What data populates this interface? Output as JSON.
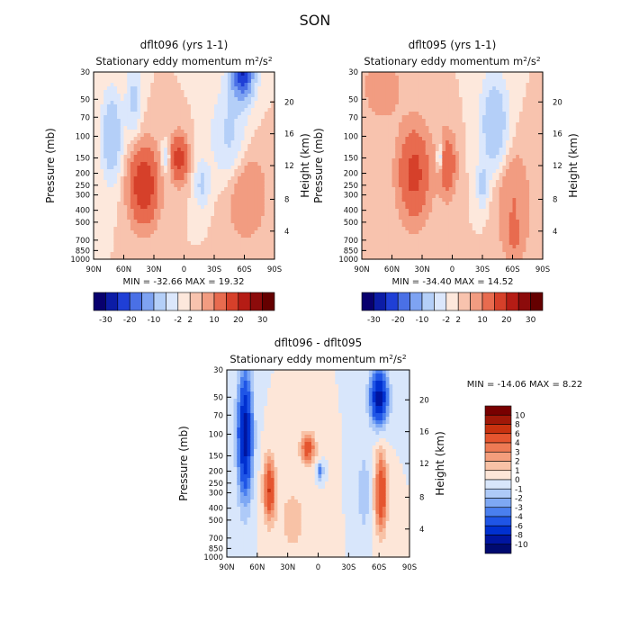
{
  "season": "SON",
  "colors": {
    "top_scale": [
      "#08006e",
      "#0c1ca6",
      "#1f3fd6",
      "#4a70e6",
      "#7ea3f2",
      "#b4cff8",
      "#dbe7fc",
      "#fde8dc",
      "#f8c3ae",
      "#f29c81",
      "#e86b4f",
      "#d6402a",
      "#b51c15",
      "#8c0b0b",
      "#650000"
    ],
    "bottom_scale": [
      "#000a70",
      "#0015a0",
      "#0030d0",
      "#1f55e6",
      "#4a7fef",
      "#7ea8f4",
      "#aecaf8",
      "#d8e6fb",
      "#fde6d8",
      "#f8c2a6",
      "#f49e7c",
      "#ee7a54",
      "#e5552f",
      "#c8320f",
      "#a01808",
      "#780000"
    ]
  },
  "chart_data": [
    {
      "type": "heatmap",
      "name": "dflt096",
      "title": "dflt096 (yrs 1-1)",
      "subtitle": "Stationary eddy momentum m^2/s^2",
      "xlabel": "",
      "ylabel": "Pressure (mb)",
      "ylabel_right": "Height (km)",
      "x_ticks": [
        "90N",
        "60N",
        "30N",
        "0",
        "30S",
        "60S",
        "90S"
      ],
      "y_ticks": [
        "30",
        "50",
        "70",
        "100",
        "150",
        "200",
        "250",
        "300",
        "400",
        "500",
        "700",
        "850",
        "1000"
      ],
      "right_ticks": [
        "4",
        "8",
        "12",
        "16",
        "20"
      ],
      "minmax_text": "MIN = -32.66   MAX = 19.32",
      "colorbar_labels": [
        "-30",
        "-20",
        "-10",
        "-2",
        "2",
        "10",
        "20",
        "30"
      ],
      "levels": [
        -30,
        -25,
        -20,
        -15,
        -10,
        -5,
        -2,
        0,
        2,
        5,
        10,
        15,
        20,
        25,
        30
      ],
      "features": [
        {
          "lat": 72,
          "p": 100,
          "v": -10,
          "slat": 7,
          "sp": 0.55
        },
        {
          "lat": 50,
          "p": 50,
          "v": -6,
          "slat": 5,
          "sp": 0.5
        },
        {
          "lat": 40,
          "p": 250,
          "v": 15,
          "slat": 10,
          "sp": 0.5
        },
        {
          "lat": 5,
          "p": 150,
          "v": 13,
          "slat": 6,
          "sp": 0.3
        },
        {
          "lat": 18,
          "p": 150,
          "v": -6,
          "slat": 3,
          "sp": 0.2
        },
        {
          "lat": -58,
          "p": 30,
          "v": -25,
          "slat": 8,
          "sp": 0.35
        },
        {
          "lat": -45,
          "p": 100,
          "v": -6,
          "slat": 12,
          "sp": 0.6
        },
        {
          "lat": -18,
          "p": 250,
          "v": -6,
          "slat": 5,
          "sp": 0.3
        },
        {
          "lat": -62,
          "p": 300,
          "v": 5,
          "slat": 14,
          "sp": 0.6
        }
      ]
    },
    {
      "type": "heatmap",
      "name": "dflt095",
      "title": "dflt095 (yrs 1-1)",
      "subtitle": "Stationary eddy momentum m^2/s^2",
      "xlabel": "",
      "ylabel": "Pressure (mb)",
      "ylabel_right": "Height (km)",
      "x_ticks": [
        "90N",
        "60N",
        "30N",
        "0",
        "30S",
        "60S",
        "90S"
      ],
      "y_ticks": [
        "30",
        "50",
        "70",
        "100",
        "150",
        "200",
        "250",
        "300",
        "400",
        "500",
        "700",
        "850",
        "1000"
      ],
      "right_ticks": [
        "4",
        "8",
        "12",
        "16",
        "20"
      ],
      "minmax_text": "MIN = -34.40   MAX = 14.52",
      "colorbar_labels": [
        "-30",
        "-20",
        "-10",
        "-2",
        "2",
        "10",
        "20",
        "30"
      ],
      "levels": [
        -30,
        -25,
        -20,
        -15,
        -10,
        -5,
        -2,
        0,
        2,
        5,
        10,
        15,
        20,
        25,
        30
      ],
      "features": [
        {
          "lat": 70,
          "p": 40,
          "v": 5,
          "slat": 12,
          "sp": 0.4
        },
        {
          "lat": 38,
          "p": 200,
          "v": 12,
          "slat": 11,
          "sp": 0.6
        },
        {
          "lat": 5,
          "p": 170,
          "v": 10,
          "slat": 6,
          "sp": 0.4
        },
        {
          "lat": 12,
          "p": 150,
          "v": -8,
          "slat": 2.5,
          "sp": 0.2
        },
        {
          "lat": -42,
          "p": 80,
          "v": -10,
          "slat": 9,
          "sp": 0.6
        },
        {
          "lat": -30,
          "p": 250,
          "v": -6,
          "slat": 4,
          "sp": 0.3
        },
        {
          "lat": -60,
          "p": 300,
          "v": 5,
          "slat": 12,
          "sp": 0.6
        },
        {
          "lat": -62,
          "p": 700,
          "v": 4,
          "slat": 8,
          "sp": 0.3
        }
      ]
    },
    {
      "type": "heatmap",
      "name": "dflt096 - dflt095",
      "title": "dflt096 - dflt095",
      "subtitle": "Stationary eddy momentum m^2/s^2",
      "xlabel": "",
      "ylabel": "Pressure (mb)",
      "ylabel_right": "Height (km)",
      "x_ticks": [
        "90N",
        "60N",
        "30N",
        "0",
        "30S",
        "60S",
        "90S"
      ],
      "y_ticks": [
        "30",
        "50",
        "70",
        "100",
        "150",
        "200",
        "250",
        "300",
        "400",
        "500",
        "700",
        "850",
        "1000"
      ],
      "right_ticks": [
        "4",
        "8",
        "12",
        "16",
        "20"
      ],
      "minmax_text": "MIN = -14.06   MAX =  8.22",
      "colorbar_labels": [
        "10",
        "8",
        "6",
        "4",
        "3",
        "2",
        "1",
        "0",
        "-1",
        "-2",
        "-3",
        "-4",
        "-6",
        "-8",
        "-10"
      ],
      "levels": [
        -10,
        -8,
        -6,
        -4,
        -3,
        -2,
        -1,
        0,
        1,
        2,
        3,
        4,
        6,
        8,
        10
      ],
      "features": [
        {
          "lat": 72,
          "p": 100,
          "v": -9,
          "slat": 5,
          "sp": 0.8
        },
        {
          "lat": 48,
          "p": 280,
          "v": 6,
          "slat": 4,
          "sp": 0.4
        },
        {
          "lat": 10,
          "p": 130,
          "v": 5,
          "slat": 5,
          "sp": 0.2
        },
        {
          "lat": -2,
          "p": 200,
          "v": -4,
          "slat": 2,
          "sp": 0.1
        },
        {
          "lat": -60,
          "p": 50,
          "v": -9,
          "slat": 6,
          "sp": 0.35
        },
        {
          "lat": -62,
          "p": 300,
          "v": 6,
          "slat": 4,
          "sp": 0.5
        },
        {
          "lat": 25,
          "p": 500,
          "v": 1.5,
          "slat": 10,
          "sp": 0.5
        },
        {
          "lat": -45,
          "p": 300,
          "v": -2,
          "slat": 4,
          "sp": 0.5
        }
      ]
    }
  ]
}
